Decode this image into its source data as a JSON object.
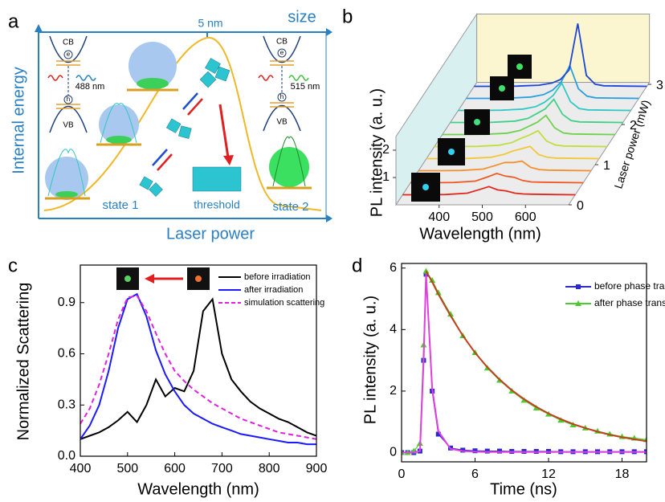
{
  "panel_labels": [
    "a",
    "b",
    "c",
    "d"
  ],
  "diagram": {
    "top_axis": "size",
    "top_tick": "5 nm",
    "y_axis": "Internal energy",
    "x_axis": "Laser power",
    "left_band": {
      "cb": "CB",
      "vb": "VB",
      "e": "e",
      "h": "h",
      "wavelength": "488 nm"
    },
    "right_band": {
      "cb": "CB",
      "vb": "VB",
      "e": "e",
      "h": "h",
      "wavelength": "515 nm"
    },
    "states": [
      "state 1",
      "threshold",
      "state 2"
    ]
  },
  "chart_data": [
    {
      "type": "waterfall",
      "x_label": "Wavelength (nm)",
      "y_label": "PL intensity (a. u.)",
      "z_label": "Laser power (mW)",
      "x": [
        300,
        350,
        400,
        450,
        480,
        500,
        520,
        540,
        560,
        580,
        600,
        650,
        700
      ],
      "xlim": [
        300,
        700
      ],
      "xticks": [
        400,
        500,
        600
      ],
      "ylim": [
        0,
        2.5
      ],
      "yticks": [
        1,
        2
      ],
      "zlim": [
        0,
        3.05
      ],
      "zticks": [
        0,
        1,
        2,
        3
      ],
      "series": [
        {
          "z": 0.25,
          "color": "#e0281e",
          "values": [
            0,
            0,
            0.01,
            0.06,
            0.2,
            0.3,
            0.18,
            0.14,
            0.06,
            0.03,
            0.02,
            0.01,
            0
          ]
        },
        {
          "z": 0.55,
          "color": "#f05a28",
          "values": [
            0,
            0,
            0.01,
            0.06,
            0.22,
            0.34,
            0.24,
            0.2,
            0.08,
            0.03,
            0.02,
            0.01,
            0
          ]
        },
        {
          "z": 0.85,
          "color": "#f59030",
          "values": [
            0,
            0,
            0.01,
            0.06,
            0.2,
            0.3,
            0.3,
            0.35,
            0.12,
            0.04,
            0.02,
            0.01,
            0
          ]
        },
        {
          "z": 1.15,
          "color": "#f0c83a",
          "values": [
            0,
            0,
            0.01,
            0.05,
            0.16,
            0.28,
            0.36,
            0.45,
            0.15,
            0.05,
            0.02,
            0.01,
            0
          ]
        },
        {
          "z": 1.45,
          "color": "#c0de40",
          "values": [
            0,
            0,
            0.01,
            0.05,
            0.15,
            0.3,
            0.42,
            0.58,
            0.2,
            0.06,
            0.02,
            0.01,
            0
          ]
        },
        {
          "z": 1.75,
          "color": "#70d24c",
          "values": [
            0,
            0,
            0.01,
            0.05,
            0.15,
            0.3,
            0.45,
            0.7,
            0.25,
            0.06,
            0.02,
            0.01,
            0
          ]
        },
        {
          "z": 2.05,
          "color": "#40d08a",
          "values": [
            0,
            0,
            0.01,
            0.05,
            0.15,
            0.32,
            0.5,
            0.85,
            0.3,
            0.07,
            0.02,
            0.01,
            0
          ]
        },
        {
          "z": 2.35,
          "color": "#30c8c4",
          "values": [
            0,
            0,
            0.01,
            0.05,
            0.14,
            0.3,
            0.55,
            1.0,
            0.32,
            0.07,
            0.02,
            0.01,
            0
          ]
        },
        {
          "z": 2.65,
          "color": "#2a9ee0",
          "values": [
            0,
            0,
            0.01,
            0.05,
            0.14,
            0.3,
            0.6,
            1.2,
            0.35,
            0.08,
            0.02,
            0.01,
            0
          ]
        },
        {
          "z": 2.95,
          "color": "#1e46d2",
          "values": [
            0,
            0,
            0.01,
            0.04,
            0.12,
            0.25,
            0.6,
            2.3,
            0.4,
            0.08,
            0.02,
            0.01,
            0
          ]
        }
      ]
    },
    {
      "type": "line",
      "x_label": "Wavelength (nm)",
      "y_label": "Normalized Scattering",
      "x": [
        400,
        420,
        440,
        460,
        480,
        500,
        520,
        540,
        560,
        580,
        600,
        620,
        640,
        660,
        680,
        700,
        720,
        740,
        760,
        780,
        800,
        820,
        840,
        860,
        880,
        900
      ],
      "xlim": [
        400,
        900
      ],
      "xticks": [
        400,
        500,
        600,
        700,
        800,
        900
      ],
      "ylim": [
        0,
        1.12
      ],
      "yticks": [
        {
          "value": 0,
          "label": "0.0"
        },
        0.3,
        0.6,
        0.9
      ],
      "legend": "upper right",
      "series": [
        {
          "name": "before irradiation",
          "color": "#000000",
          "style": "solid",
          "values": [
            0.1,
            0.12,
            0.14,
            0.17,
            0.21,
            0.26,
            0.2,
            0.3,
            0.45,
            0.35,
            0.4,
            0.38,
            0.5,
            0.85,
            0.92,
            0.6,
            0.45,
            0.38,
            0.32,
            0.28,
            0.25,
            0.22,
            0.2,
            0.17,
            0.14,
            0.12
          ]
        },
        {
          "name": "after irradiation",
          "color": "#1a1aff",
          "style": "solid",
          "values": [
            0.1,
            0.18,
            0.3,
            0.5,
            0.75,
            0.92,
            0.95,
            0.82,
            0.62,
            0.48,
            0.38,
            0.3,
            0.25,
            0.22,
            0.19,
            0.17,
            0.15,
            0.13,
            0.12,
            0.11,
            0.1,
            0.09,
            0.08,
            0.08,
            0.07,
            0.07
          ]
        },
        {
          "name": "simulation scattering",
          "color": "#e020e0",
          "style": "dashed",
          "values": [
            0.19,
            0.28,
            0.42,
            0.6,
            0.8,
            0.93,
            0.94,
            0.85,
            0.72,
            0.6,
            0.5,
            0.44,
            0.39,
            0.35,
            0.31,
            0.28,
            0.25,
            0.22,
            0.2,
            0.18,
            0.16,
            0.14,
            0.13,
            0.12,
            0.11,
            0.1
          ]
        }
      ]
    },
    {
      "type": "line",
      "x_label": "Time (ns)",
      "y_label": "PL intensity (a. u.)",
      "x": [
        0,
        0.5,
        1,
        1.5,
        1.8,
        2,
        2.5,
        3,
        4,
        5,
        6,
        7,
        8,
        9,
        10,
        11,
        12,
        13,
        14,
        15,
        16,
        17,
        18,
        19,
        20
      ],
      "xlim": [
        0,
        20
      ],
      "xticks": [
        0,
        6,
        12,
        18
      ],
      "ylim": [
        -0.3,
        6.15
      ],
      "yticks": [
        0,
        2,
        4,
        6
      ],
      "legend": "upper right",
      "fits": [
        {
          "color": "#e040e0",
          "values": [
            0,
            0,
            0,
            0.05,
            3,
            5.8,
            2.1,
            0.7,
            0.12,
            0.05,
            0.03,
            0.02,
            0.02,
            0.02,
            0.02,
            0.02,
            0.02,
            0.02,
            0.02,
            0.02,
            0.02,
            0.02,
            0.02,
            0.02,
            0.02
          ]
        },
        {
          "color": "#c04020",
          "values": [
            null,
            null,
            null,
            null,
            null,
            5.9,
            5.55,
            5.15,
            4.45,
            3.8,
            3.25,
            2.78,
            2.38,
            2.03,
            1.74,
            1.49,
            1.27,
            1.09,
            0.93,
            0.8,
            0.68,
            0.58,
            0.5,
            0.43,
            0.37
          ]
        }
      ],
      "series": [
        {
          "name": "before phase transition",
          "color": "#2a2ad0",
          "marker": "square",
          "values": [
            0,
            0,
            0,
            0.05,
            3,
            5.8,
            2,
            0.6,
            0.15,
            0.08,
            0.06,
            0.05,
            0.05,
            0.04,
            0.04,
            0.04,
            0.04,
            0.03,
            0.03,
            0.03,
            0.03,
            0.03,
            0.03,
            0.03,
            0.03
          ]
        },
        {
          "name": "after phase transition",
          "color": "#4ccc2c",
          "marker": "triangle",
          "values": [
            0,
            0,
            0.05,
            0.3,
            3.5,
            5.9,
            5.6,
            5.2,
            4.5,
            3.8,
            3.25,
            2.75,
            2.35,
            2.0,
            1.7,
            1.45,
            1.25,
            1.05,
            0.9,
            0.8,
            0.7,
            0.6,
            0.52,
            0.47,
            0.42
          ]
        }
      ]
    }
  ]
}
